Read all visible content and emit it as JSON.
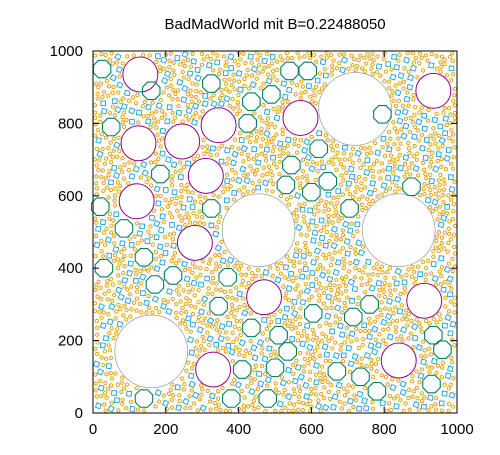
{
  "chart_data": {
    "type": "scatter",
    "title": "BadMadWorld mit B=0.22488050",
    "xlabel": "",
    "ylabel": "",
    "xlim": [
      0,
      1000
    ],
    "ylim": [
      0,
      1000
    ],
    "x_ticks": [
      0,
      200,
      400,
      600,
      800,
      1000
    ],
    "y_ticks": [
      0,
      200,
      400,
      600,
      800,
      1000
    ],
    "x_tick_labels": [
      "0",
      "200",
      "400",
      "600",
      "800",
      "1000"
    ],
    "y_tick_labels": [
      "0",
      "200",
      "400",
      "600",
      "800",
      "1000"
    ],
    "grid": false,
    "legend": "none",
    "colors": {
      "large": "#888888",
      "purple": "#8c008c",
      "green": "#007f5f",
      "blue": "#1a9fd6",
      "orange": "#e6a000"
    },
    "series": [
      {
        "color_key": "large",
        "points": [
          {
            "x": 720,
            "y": 840,
            "r": 100
          },
          {
            "x": 455,
            "y": 505,
            "r": 100
          },
          {
            "x": 840,
            "y": 505,
            "r": 100
          },
          {
            "x": 160,
            "y": 170,
            "r": 100
          }
        ]
      },
      {
        "color_key": "purple",
        "points": [
          {
            "x": 130,
            "y": 935,
            "r": 48
          },
          {
            "x": 935,
            "y": 890,
            "r": 48
          },
          {
            "x": 345,
            "y": 795,
            "r": 48
          },
          {
            "x": 570,
            "y": 815,
            "r": 48
          },
          {
            "x": 125,
            "y": 745,
            "r": 48
          },
          {
            "x": 245,
            "y": 750,
            "r": 48
          },
          {
            "x": 310,
            "y": 655,
            "r": 48
          },
          {
            "x": 120,
            "y": 585,
            "r": 48
          },
          {
            "x": 280,
            "y": 470,
            "r": 48
          },
          {
            "x": 470,
            "y": 320,
            "r": 48
          },
          {
            "x": 910,
            "y": 310,
            "r": 48
          },
          {
            "x": 840,
            "y": 145,
            "r": 48
          },
          {
            "x": 330,
            "y": 120,
            "r": 48
          }
        ]
      },
      {
        "color_key": "green",
        "points": [
          {
            "x": 25,
            "y": 950,
            "r": 26
          },
          {
            "x": 325,
            "y": 910,
            "r": 26
          },
          {
            "x": 435,
            "y": 860,
            "r": 26
          },
          {
            "x": 540,
            "y": 945,
            "r": 26
          },
          {
            "x": 590,
            "y": 945,
            "r": 26
          },
          {
            "x": 50,
            "y": 790,
            "r": 26
          },
          {
            "x": 425,
            "y": 800,
            "r": 26
          },
          {
            "x": 795,
            "y": 825,
            "r": 26
          },
          {
            "x": 620,
            "y": 730,
            "r": 26
          },
          {
            "x": 185,
            "y": 660,
            "r": 26
          },
          {
            "x": 545,
            "y": 685,
            "r": 26
          },
          {
            "x": 645,
            "y": 640,
            "r": 26
          },
          {
            "x": 530,
            "y": 630,
            "r": 26
          },
          {
            "x": 600,
            "y": 610,
            "r": 26
          },
          {
            "x": 20,
            "y": 570,
            "r": 26
          },
          {
            "x": 875,
            "y": 625,
            "r": 26
          },
          {
            "x": 325,
            "y": 565,
            "r": 26
          },
          {
            "x": 705,
            "y": 565,
            "r": 26
          },
          {
            "x": 85,
            "y": 510,
            "r": 26
          },
          {
            "x": 30,
            "y": 400,
            "r": 26
          },
          {
            "x": 140,
            "y": 430,
            "r": 26
          },
          {
            "x": 370,
            "y": 375,
            "r": 26
          },
          {
            "x": 220,
            "y": 380,
            "r": 26
          },
          {
            "x": 170,
            "y": 355,
            "r": 26
          },
          {
            "x": 345,
            "y": 295,
            "r": 26
          },
          {
            "x": 605,
            "y": 275,
            "r": 26
          },
          {
            "x": 760,
            "y": 300,
            "r": 26
          },
          {
            "x": 715,
            "y": 265,
            "r": 26
          },
          {
            "x": 435,
            "y": 235,
            "r": 26
          },
          {
            "x": 510,
            "y": 215,
            "r": 26
          },
          {
            "x": 535,
            "y": 170,
            "r": 26
          },
          {
            "x": 935,
            "y": 215,
            "r": 26
          },
          {
            "x": 960,
            "y": 175,
            "r": 26
          },
          {
            "x": 410,
            "y": 120,
            "r": 26
          },
          {
            "x": 500,
            "y": 125,
            "r": 26
          },
          {
            "x": 670,
            "y": 115,
            "r": 26
          },
          {
            "x": 735,
            "y": 100,
            "r": 26
          },
          {
            "x": 780,
            "y": 60,
            "r": 26
          },
          {
            "x": 380,
            "y": 40,
            "r": 26
          },
          {
            "x": 480,
            "y": 40,
            "r": 26
          },
          {
            "x": 140,
            "y": 40,
            "r": 26
          },
          {
            "x": 930,
            "y": 80,
            "r": 26
          },
          {
            "x": 160,
            "y": 890,
            "r": 26
          },
          {
            "x": 490,
            "y": 880,
            "r": 26
          }
        ]
      },
      {
        "color_key": "blue",
        "count": 420,
        "r": 9,
        "seed": 7
      },
      {
        "color_key": "orange",
        "count": 1600,
        "r": 5,
        "seed": 19
      }
    ]
  }
}
